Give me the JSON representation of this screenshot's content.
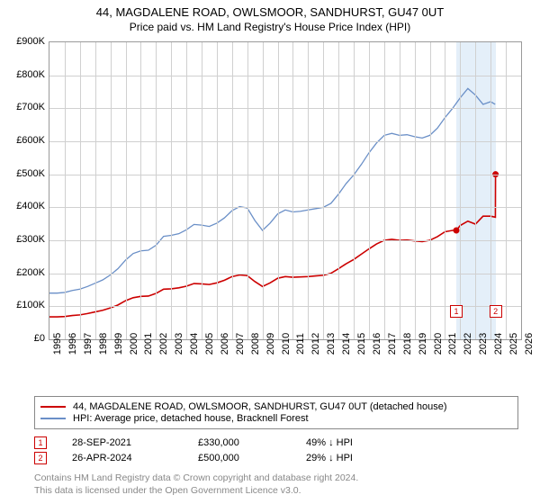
{
  "title": {
    "line1": "44, MAGDALENE ROAD, OWLSMOOR, SANDHURST, GU47 0UT",
    "line2": "Price paid vs. HM Land Registry's House Price Index (HPI)",
    "fontsize1": 13,
    "fontsize2": 12,
    "color": "#000000"
  },
  "chart": {
    "type": "line",
    "background": "#ffffff",
    "border_color": "#9a9a9a",
    "grid_color": "#d0d0d0",
    "y": {
      "min": 0,
      "max": 900000,
      "ticks": [
        0,
        100000,
        200000,
        300000,
        400000,
        500000,
        600000,
        700000,
        800000,
        900000
      ],
      "labels": [
        "£0",
        "£100K",
        "£200K",
        "£300K",
        "£400K",
        "£500K",
        "£600K",
        "£700K",
        "£800K",
        "£900K"
      ],
      "fontsize": 11
    },
    "x": {
      "min": 1995,
      "max": 2026,
      "ticks": [
        1995,
        1996,
        1997,
        1998,
        1999,
        2000,
        2001,
        2002,
        2003,
        2004,
        2005,
        2006,
        2007,
        2008,
        2009,
        2010,
        2011,
        2012,
        2013,
        2014,
        2015,
        2016,
        2017,
        2018,
        2019,
        2020,
        2021,
        2022,
        2023,
        2024,
        2025,
        2026
      ],
      "fontsize": 11
    },
    "highlight_band": {
      "start": 2021.74,
      "end": 2024.32,
      "color": "#dbe9f7"
    },
    "series": {
      "hpi": {
        "label": "HPI: Average price, detached house, Bracknell Forest",
        "color": "#6a8fc7",
        "width": 1.3,
        "points": [
          [
            1995.0,
            140000
          ],
          [
            1995.5,
            140000
          ],
          [
            1996.0,
            142000
          ],
          [
            1996.5,
            148000
          ],
          [
            1997.0,
            152000
          ],
          [
            1997.5,
            160000
          ],
          [
            1998.0,
            170000
          ],
          [
            1998.5,
            180000
          ],
          [
            1999.0,
            195000
          ],
          [
            1999.5,
            214000
          ],
          [
            2000.0,
            240000
          ],
          [
            2000.5,
            260000
          ],
          [
            2001.0,
            268000
          ],
          [
            2001.5,
            270000
          ],
          [
            2002.0,
            285000
          ],
          [
            2002.5,
            312000
          ],
          [
            2003.0,
            315000
          ],
          [
            2003.5,
            320000
          ],
          [
            2004.0,
            332000
          ],
          [
            2004.5,
            348000
          ],
          [
            2005.0,
            346000
          ],
          [
            2005.5,
            342000
          ],
          [
            2006.0,
            352000
          ],
          [
            2006.5,
            368000
          ],
          [
            2007.0,
            390000
          ],
          [
            2007.5,
            402000
          ],
          [
            2008.0,
            398000
          ],
          [
            2008.5,
            360000
          ],
          [
            2009.0,
            330000
          ],
          [
            2009.5,
            352000
          ],
          [
            2010.0,
            380000
          ],
          [
            2010.5,
            392000
          ],
          [
            2011.0,
            386000
          ],
          [
            2011.5,
            388000
          ],
          [
            2012.0,
            392000
          ],
          [
            2012.5,
            396000
          ],
          [
            2013.0,
            400000
          ],
          [
            2013.5,
            412000
          ],
          [
            2014.0,
            440000
          ],
          [
            2014.5,
            472000
          ],
          [
            2015.0,
            498000
          ],
          [
            2015.5,
            530000
          ],
          [
            2016.0,
            565000
          ],
          [
            2016.5,
            595000
          ],
          [
            2017.0,
            618000
          ],
          [
            2017.5,
            624000
          ],
          [
            2018.0,
            618000
          ],
          [
            2018.5,
            620000
          ],
          [
            2019.0,
            614000
          ],
          [
            2019.5,
            610000
          ],
          [
            2020.0,
            618000
          ],
          [
            2020.5,
            640000
          ],
          [
            2021.0,
            672000
          ],
          [
            2021.5,
            700000
          ],
          [
            2022.0,
            732000
          ],
          [
            2022.5,
            760000
          ],
          [
            2023.0,
            740000
          ],
          [
            2023.5,
            712000
          ],
          [
            2024.0,
            720000
          ],
          [
            2024.3,
            712000
          ]
        ]
      },
      "property": {
        "label": "44, MAGDALENE ROAD, OWLSMOOR, SANDHURST, GU47 0UT (detached house)",
        "color": "#cc0000",
        "width": 1.6,
        "points": [
          [
            1995.0,
            68000
          ],
          [
            1995.5,
            68000
          ],
          [
            1996.0,
            69000
          ],
          [
            1996.5,
            72000
          ],
          [
            1997.0,
            74000
          ],
          [
            1997.5,
            78000
          ],
          [
            1998.0,
            83000
          ],
          [
            1998.5,
            88000
          ],
          [
            1999.0,
            95000
          ],
          [
            1999.5,
            104000
          ],
          [
            2000.0,
            117000
          ],
          [
            2000.5,
            126000
          ],
          [
            2001.0,
            130000
          ],
          [
            2001.5,
            131000
          ],
          [
            2002.0,
            139000
          ],
          [
            2002.5,
            152000
          ],
          [
            2003.0,
            153000
          ],
          [
            2003.5,
            156000
          ],
          [
            2004.0,
            161000
          ],
          [
            2004.5,
            169000
          ],
          [
            2005.0,
            168000
          ],
          [
            2005.5,
            166000
          ],
          [
            2006.0,
            171000
          ],
          [
            2006.5,
            179000
          ],
          [
            2007.0,
            190000
          ],
          [
            2007.5,
            195000
          ],
          [
            2008.0,
            193000
          ],
          [
            2008.5,
            175000
          ],
          [
            2009.0,
            160000
          ],
          [
            2009.5,
            171000
          ],
          [
            2010.0,
            185000
          ],
          [
            2010.5,
            190000
          ],
          [
            2011.0,
            188000
          ],
          [
            2011.5,
            189000
          ],
          [
            2012.0,
            190000
          ],
          [
            2012.5,
            192000
          ],
          [
            2013.0,
            194000
          ],
          [
            2013.5,
            200000
          ],
          [
            2014.0,
            214000
          ],
          [
            2014.5,
            229000
          ],
          [
            2015.0,
            242000
          ],
          [
            2015.5,
            258000
          ],
          [
            2016.0,
            274000
          ],
          [
            2016.5,
            289000
          ],
          [
            2017.0,
            300000
          ],
          [
            2017.5,
            303000
          ],
          [
            2018.0,
            300000
          ],
          [
            2018.5,
            301000
          ],
          [
            2019.0,
            298000
          ],
          [
            2019.5,
            296000
          ],
          [
            2020.0,
            300000
          ],
          [
            2020.5,
            311000
          ],
          [
            2021.0,
            326000
          ],
          [
            2021.5,
            330000
          ],
          [
            2021.74,
            330000
          ],
          [
            2022.0,
            345000
          ],
          [
            2022.5,
            358000
          ],
          [
            2023.0,
            349000
          ],
          [
            2023.5,
            373000
          ],
          [
            2024.0,
            373000
          ],
          [
            2024.31,
            370000
          ],
          [
            2024.32,
            500000
          ]
        ]
      }
    },
    "sale_markers": [
      {
        "num": "1",
        "x": 2021.74,
        "y": 330000,
        "label_y": 85000
      },
      {
        "num": "2",
        "x": 2024.32,
        "y": 500000,
        "label_y": 85000
      }
    ],
    "marker_style": {
      "radius": 3.5,
      "fill": "#cc0000",
      "box_border": "#cc0000",
      "box_bg": "#ffffff"
    }
  },
  "legend": {
    "border_color": "#888888",
    "rows": [
      {
        "color": "#cc0000",
        "label": "44, MAGDALENE ROAD, OWLSMOOR, SANDHURST, GU47 0UT (detached house)"
      },
      {
        "color": "#6a8fc7",
        "label": "HPI: Average price, detached house, Bracknell Forest"
      }
    ]
  },
  "sales": [
    {
      "num": "1",
      "date": "28-SEP-2021",
      "price": "£330,000",
      "delta": "49% ↓ HPI"
    },
    {
      "num": "2",
      "date": "26-APR-2024",
      "price": "£500,000",
      "delta": "29% ↓ HPI"
    }
  ],
  "footer": {
    "line1": "Contains HM Land Registry data © Crown copyright and database right 2024.",
    "line2": "This data is licensed under the Open Government Licence v3.0.",
    "color": "#888888",
    "fontsize": 10.5
  }
}
